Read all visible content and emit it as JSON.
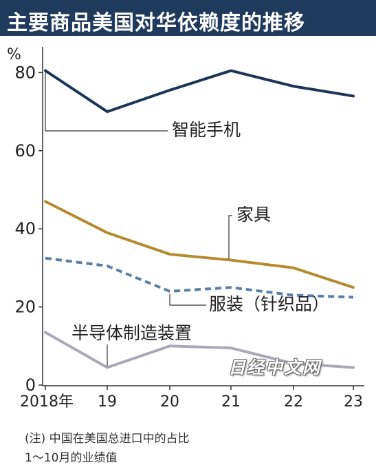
{
  "title": "主要商品美国对华依赖度的推移",
  "chart_data": {
    "type": "line",
    "unit_label": "%",
    "categories": [
      "2018年",
      "19",
      "20",
      "21",
      "22",
      "23"
    ],
    "ylim": [
      0,
      85
    ],
    "yticks": [
      0,
      20,
      40,
      60,
      80
    ],
    "grid": false,
    "legend": "inline labels",
    "series": [
      {
        "name": "智能手机",
        "values": [
          80.5,
          70,
          75.5,
          80.5,
          76.5,
          74
        ],
        "color": "#1c3558",
        "style": "solid"
      },
      {
        "name": "家具",
        "values": [
          47,
          39,
          33.5,
          32,
          30,
          25
        ],
        "color": "#b58a2e",
        "style": "solid"
      },
      {
        "name": "服装（针织品）",
        "values": [
          32.5,
          30.5,
          24,
          25,
          23,
          22.5
        ],
        "color": "#5a7fa6",
        "style": "dashed"
      },
      {
        "name": "半导体制造装置",
        "values": [
          13.5,
          4.5,
          10,
          9.5,
          5.5,
          4.5
        ],
        "color": "#a9a9ba",
        "style": "solid"
      }
    ]
  },
  "note": {
    "line1": "(注) 中国在美国总进口中的占比",
    "line2": "1～10月的业绩值"
  },
  "watermark": "日经中文网"
}
